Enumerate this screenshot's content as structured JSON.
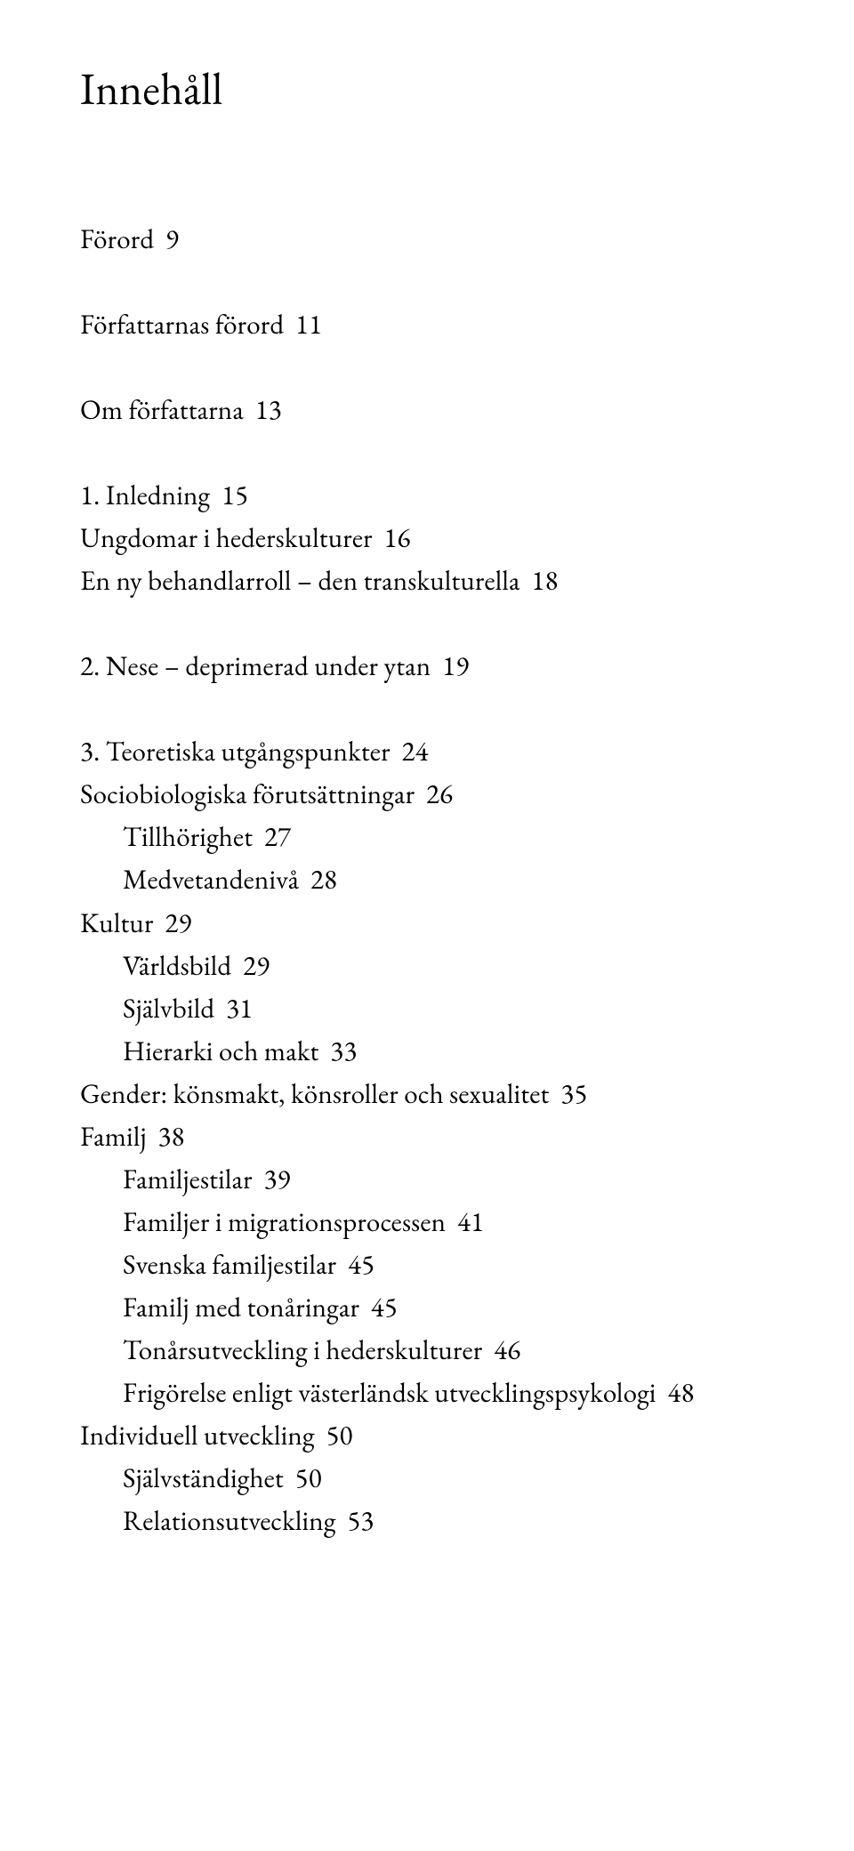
{
  "title": "Innehåll",
  "sections": [
    {
      "lines": [
        {
          "text": "Förord  9",
          "indent": 0
        }
      ]
    },
    {
      "lines": [
        {
          "text": "Författarnas förord  11",
          "indent": 0
        }
      ]
    },
    {
      "lines": [
        {
          "text": "Om författarna  13",
          "indent": 0
        }
      ]
    },
    {
      "lines": [
        {
          "text": "1. Inledning  15",
          "indent": 0
        },
        {
          "text": "Ungdomar i hederskulturer  16",
          "indent": 0
        },
        {
          "text": "En ny behandlarroll – den transkulturella  18",
          "indent": 0
        }
      ]
    },
    {
      "lines": [
        {
          "text": "2. Nese – deprimerad under ytan  19",
          "indent": 0
        }
      ]
    },
    {
      "lines": [
        {
          "text": "3. Teoretiska utgångspunkter  24",
          "indent": 0
        },
        {
          "text": "Sociobiologiska förutsättningar  26",
          "indent": 0
        },
        {
          "text": "Tillhörighet  27",
          "indent": 1
        },
        {
          "text": "Medvetandenivå  28",
          "indent": 1
        },
        {
          "text": "Kultur  29",
          "indent": 0
        },
        {
          "text": "Världsbild  29",
          "indent": 1
        },
        {
          "text": "Självbild  31",
          "indent": 1
        },
        {
          "text": "Hierarki och makt  33",
          "indent": 1
        },
        {
          "text": "Gender: könsmakt, könsroller och sexualitet  35",
          "indent": 0
        },
        {
          "text": "Familj  38",
          "indent": 0
        },
        {
          "text": "Familjestilar  39",
          "indent": 1
        },
        {
          "text": "Familjer i migrationsprocessen  41",
          "indent": 1
        },
        {
          "text": "Svenska familjestilar  45",
          "indent": 1
        },
        {
          "text": "Familj med tonåringar  45",
          "indent": 1
        },
        {
          "text": "Tonårsutveckling i hederskulturer  46",
          "indent": 1
        },
        {
          "text": "Frigörelse enligt västerländsk utvecklingspsykologi  48",
          "indent": 1
        },
        {
          "text": "Individuell utveckling  50",
          "indent": 0
        },
        {
          "text": "Självständighet  50",
          "indent": 1
        },
        {
          "text": "Relationsutveckling  53",
          "indent": 1
        }
      ]
    }
  ]
}
